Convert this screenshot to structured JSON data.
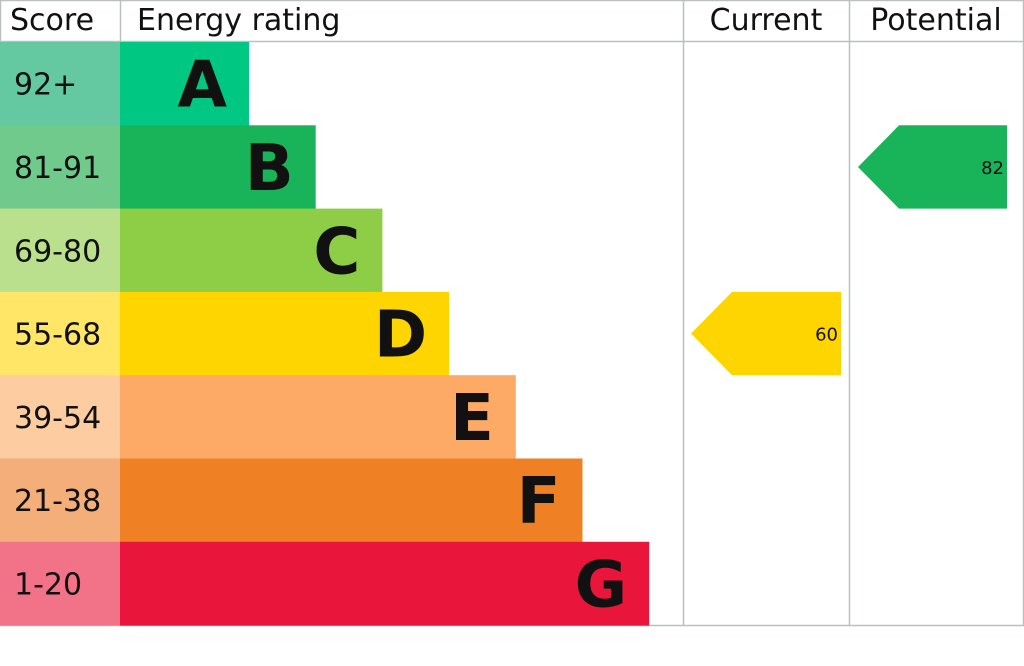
{
  "chart_data": {
    "type": "bar",
    "headers": {
      "score": "Score",
      "rating": "Energy rating",
      "current": "Current",
      "potential": "Potential"
    },
    "bands": [
      {
        "letter": "A",
        "range": "92+",
        "color": "#00c781",
        "light": "#64c8a0"
      },
      {
        "letter": "B",
        "range": "81-91",
        "color": "#19b459",
        "light": "#6fca8c"
      },
      {
        "letter": "C",
        "range": "69-80",
        "color": "#8dce46",
        "light": "#bae08e"
      },
      {
        "letter": "D",
        "range": "55-68",
        "color": "#ffd500",
        "light": "#ffe666"
      },
      {
        "letter": "E",
        "range": "39-54",
        "color": "#fcaa65",
        "light": "#fdcca0"
      },
      {
        "letter": "F",
        "range": "21-38",
        "color": "#ef8023",
        "light": "#f4ae7a"
      },
      {
        "letter": "G",
        "range": "1-20",
        "color": "#e9153b",
        "light": "#f27388"
      }
    ],
    "current": {
      "value": "60",
      "band": "D",
      "color": "#ffd500"
    },
    "potential": {
      "value": "82",
      "band": "B",
      "color": "#19b459"
    }
  }
}
